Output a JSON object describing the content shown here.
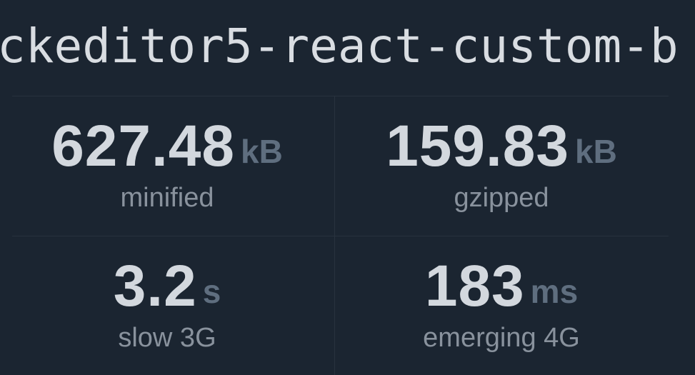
{
  "page": {
    "title": "ckeditor5-react-custom-b",
    "background_color": "#1b2531"
  },
  "colors": {
    "title_text": "#d9dde2",
    "stat_value": "#d3d8de",
    "stat_unit": "#5f6e7f",
    "stat_label": "#89929d",
    "divider": "#28323e"
  },
  "stats": [
    {
      "value": "627.48",
      "unit": "kB",
      "label": "minified"
    },
    {
      "value": "159.83",
      "unit": "kB",
      "label": "gzipped"
    },
    {
      "value": "3.2",
      "unit": "s",
      "label": "slow 3G"
    },
    {
      "value": "183",
      "unit": "ms",
      "label": "emerging 4G"
    }
  ]
}
